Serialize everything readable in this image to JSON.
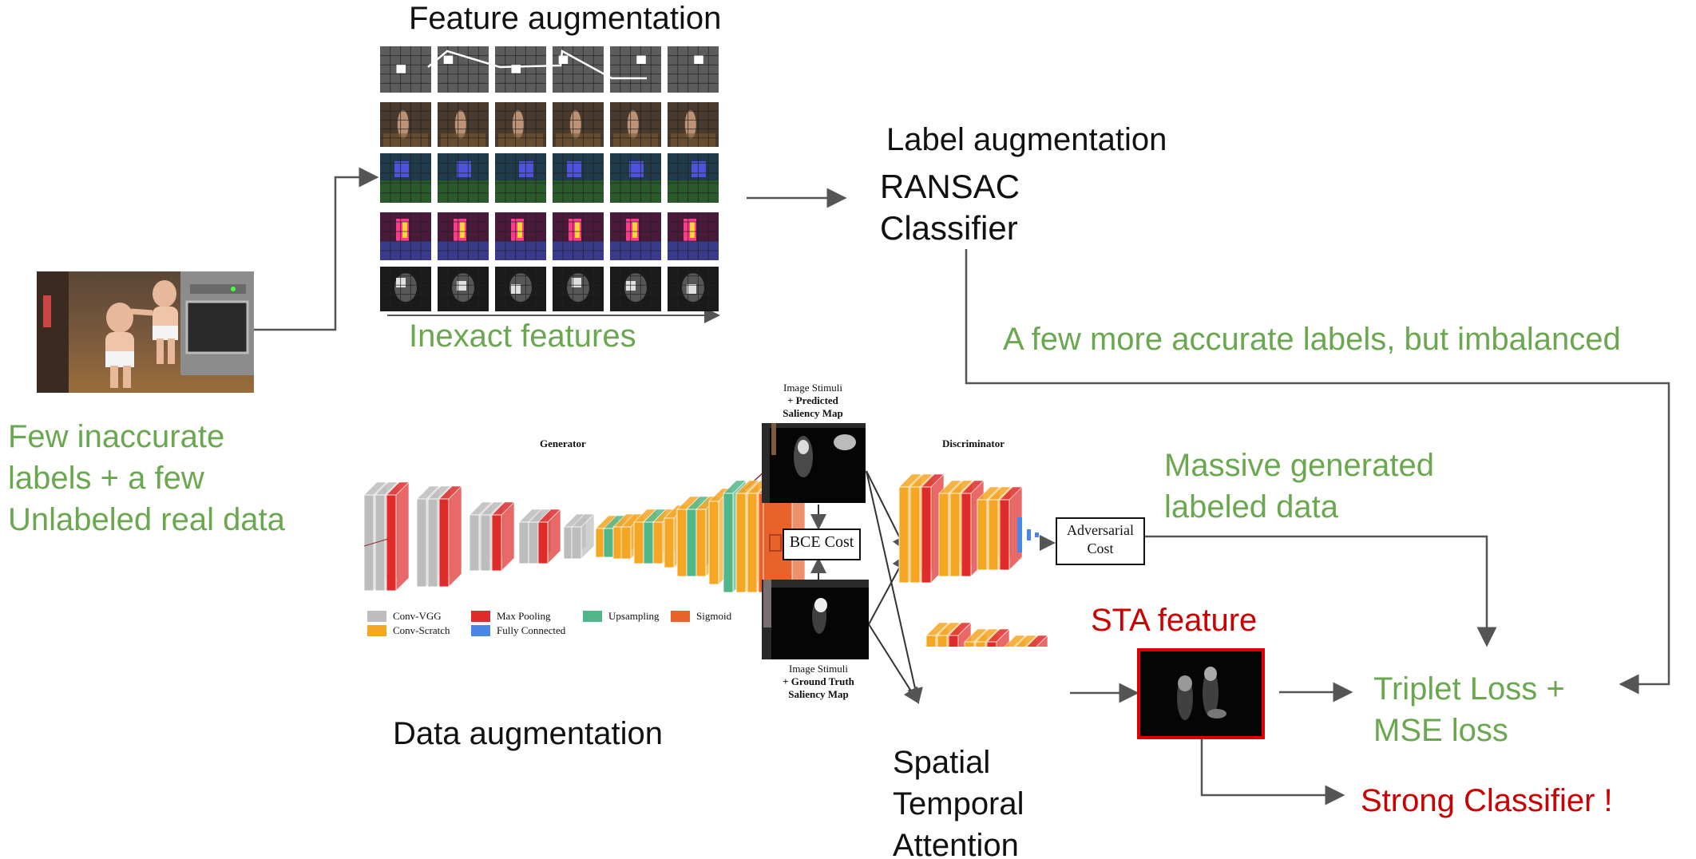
{
  "labels": {
    "feature_aug": "Feature augmentation",
    "label_aug": "Label augmentation",
    "ransac_line1": "RANSAC",
    "ransac_line2": "Classifier",
    "inexact": "Inexact features",
    "few_more": "A few more accurate labels, but imbalanced",
    "few_inacc_1": "Few inaccurate",
    "few_inacc_2": "labels + a few",
    "few_inacc_3": "Unlabeled real data",
    "massive_1": "Massive generated",
    "massive_2": "labeled data",
    "sta_feature": "STA feature",
    "triplet_1": "Triplet Loss +",
    "triplet_2": "MSE loss",
    "strong": "Strong Classifier !",
    "data_aug": "Data augmentation",
    "spatial_1": "Spatial",
    "spatial_2": "Temporal",
    "spatial_3": "Attention"
  },
  "gan": {
    "generator": "Generator",
    "discriminator": "Discriminator",
    "stim_pred_1": "Image Stimuli",
    "stim_pred_2": "+ Predicted",
    "stim_pred_3": "Saliency Map",
    "stim_gt_1": "Image Stimuli",
    "stim_gt_2": "+ Ground Truth",
    "stim_gt_3": "Saliency Map",
    "bce": "BCE Cost",
    "adv_1": "Adversarial",
    "adv_2": "Cost"
  },
  "legend": [
    {
      "label": "Conv-VGG",
      "color": "#bdbdbd"
    },
    {
      "label": "Conv-Scratch",
      "color": "#f5a623"
    },
    {
      "label": "Max Pooling",
      "color": "#e02b2b"
    },
    {
      "label": "Fully Connected",
      "color": "#4a86e8"
    },
    {
      "label": "Upsampling",
      "color": "#52b788"
    },
    {
      "label": "Sigmoid",
      "color": "#e8622a"
    }
  ],
  "colors": {
    "green": "#6aa84f",
    "red": "#cc0000",
    "arrow": "#555555"
  }
}
